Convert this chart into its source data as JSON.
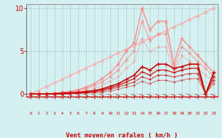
{
  "background_color": "#d4f0f0",
  "grid_color": "#b0c8c8",
  "xlabel": "Vent moyen/en rafales ( km/h )",
  "xlabel_color": "#cc0000",
  "tick_color": "#cc0000",
  "xlim": [
    -0.5,
    23.5
  ],
  "ylim": [
    -0.3,
    10.5
  ],
  "yticks": [
    0,
    5,
    10
  ],
  "xticks": [
    0,
    1,
    2,
    3,
    4,
    5,
    6,
    7,
    8,
    9,
    10,
    11,
    12,
    13,
    14,
    15,
    16,
    17,
    18,
    19,
    20,
    21,
    22,
    23
  ],
  "series": [
    {
      "x": [
        0,
        1,
        2,
        3,
        4,
        5,
        6,
        7,
        8,
        9,
        10,
        11,
        12,
        13,
        14,
        15,
        16,
        17,
        18,
        19,
        20,
        21,
        22,
        23
      ],
      "y": [
        0,
        0.43,
        0.87,
        1.3,
        1.74,
        2.17,
        2.61,
        3.04,
        3.48,
        3.91,
        4.35,
        4.78,
        5.22,
        5.65,
        6.09,
        6.52,
        6.96,
        7.39,
        7.83,
        8.26,
        8.7,
        9.13,
        9.57,
        10.0
      ],
      "color": "#ffaaaa",
      "linewidth": 1.0,
      "marker": "x",
      "markersize": 3,
      "alpha": 1.0
    },
    {
      "x": [
        0,
        1,
        2,
        3,
        4,
        5,
        6,
        7,
        8,
        9,
        10,
        11,
        12,
        13,
        14,
        15,
        16,
        17,
        18,
        19,
        20,
        21,
        22,
        23
      ],
      "y": [
        0,
        0,
        0,
        0.1,
        0.2,
        0.3,
        0.5,
        0.8,
        1.2,
        1.8,
        2.5,
        3.5,
        5.0,
        6.0,
        10.0,
        7.5,
        8.5,
        8.5,
        3.5,
        6.5,
        5.5,
        4.5,
        3.5,
        2.5
      ],
      "color": "#ff8888",
      "linewidth": 1.0,
      "marker": "x",
      "markersize": 3,
      "alpha": 1.0
    },
    {
      "x": [
        0,
        1,
        2,
        3,
        4,
        5,
        6,
        7,
        8,
        9,
        10,
        11,
        12,
        13,
        14,
        15,
        16,
        17,
        18,
        19,
        20,
        21,
        22,
        23
      ],
      "y": [
        0,
        0,
        0,
        0.05,
        0.15,
        0.25,
        0.4,
        0.65,
        0.95,
        1.4,
        2.0,
        2.8,
        4.0,
        5.0,
        8.5,
        6.2,
        7.0,
        7.0,
        3.0,
        5.5,
        4.8,
        3.8,
        3.0,
        2.0
      ],
      "color": "#ff8888",
      "linewidth": 0.8,
      "marker": "x",
      "markersize": 2.5,
      "alpha": 0.8
    },
    {
      "x": [
        0,
        1,
        2,
        3,
        4,
        5,
        6,
        7,
        8,
        9,
        10,
        11,
        12,
        13,
        14,
        15,
        16,
        17,
        18,
        19,
        20,
        21,
        22,
        23
      ],
      "y": [
        0,
        0,
        0,
        0,
        0.1,
        0.15,
        0.25,
        0.4,
        0.65,
        1.0,
        1.5,
        2.0,
        3.0,
        3.8,
        6.5,
        5.0,
        5.5,
        5.5,
        2.5,
        4.5,
        3.8,
        3.0,
        2.2,
        1.5
      ],
      "color": "#ff8888",
      "linewidth": 0.7,
      "marker": "x",
      "markersize": 2,
      "alpha": 0.6
    },
    {
      "x": [
        0,
        1,
        2,
        3,
        4,
        5,
        6,
        7,
        8,
        9,
        10,
        11,
        12,
        13,
        14,
        15,
        16,
        17,
        18,
        19,
        20,
        21,
        22,
        23
      ],
      "y": [
        0,
        0,
        0,
        0.05,
        0.1,
        0.15,
        0.2,
        0.3,
        0.4,
        0.6,
        0.9,
        1.2,
        1.7,
        2.2,
        3.2,
        2.8,
        3.5,
        3.5,
        3.0,
        3.2,
        3.5,
        3.5,
        0.0,
        2.5
      ],
      "color": "#cc0000",
      "linewidth": 1.2,
      "marker": "+",
      "markersize": 4,
      "alpha": 1.0
    },
    {
      "x": [
        0,
        1,
        2,
        3,
        4,
        5,
        6,
        7,
        8,
        9,
        10,
        11,
        12,
        13,
        14,
        15,
        16,
        17,
        18,
        19,
        20,
        21,
        22,
        23
      ],
      "y": [
        0,
        0,
        0,
        0.02,
        0.05,
        0.1,
        0.15,
        0.22,
        0.32,
        0.5,
        0.7,
        1.0,
        1.4,
        1.8,
        2.6,
        2.2,
        2.8,
        2.8,
        2.5,
        2.8,
        3.0,
        3.0,
        0.0,
        2.0
      ],
      "color": "#cc0000",
      "linewidth": 1.0,
      "marker": "+",
      "markersize": 3,
      "alpha": 0.85
    },
    {
      "x": [
        0,
        1,
        2,
        3,
        4,
        5,
        6,
        7,
        8,
        9,
        10,
        11,
        12,
        13,
        14,
        15,
        16,
        17,
        18,
        19,
        20,
        21,
        22,
        23
      ],
      "y": [
        0,
        0,
        0,
        0,
        0.03,
        0.07,
        0.1,
        0.15,
        0.22,
        0.35,
        0.55,
        0.8,
        1.1,
        1.4,
        2.0,
        1.7,
        2.2,
        2.2,
        2.0,
        2.2,
        2.4,
        2.4,
        0.0,
        1.6
      ],
      "color": "#cc0000",
      "linewidth": 0.8,
      "marker": "+",
      "markersize": 3,
      "alpha": 0.7
    },
    {
      "x": [
        0,
        1,
        2,
        3,
        4,
        5,
        6,
        7,
        8,
        9,
        10,
        11,
        12,
        13,
        14,
        15,
        16,
        17,
        18,
        19,
        20,
        21,
        22,
        23
      ],
      "y": [
        0,
        0,
        0,
        0,
        0,
        0.03,
        0.07,
        0.1,
        0.15,
        0.22,
        0.35,
        0.55,
        0.8,
        1.0,
        1.5,
        1.2,
        1.6,
        1.6,
        1.4,
        1.6,
        1.8,
        1.8,
        0.0,
        1.2
      ],
      "color": "#cc0000",
      "linewidth": 0.7,
      "marker": "+",
      "markersize": 2.5,
      "alpha": 0.55
    }
  ]
}
